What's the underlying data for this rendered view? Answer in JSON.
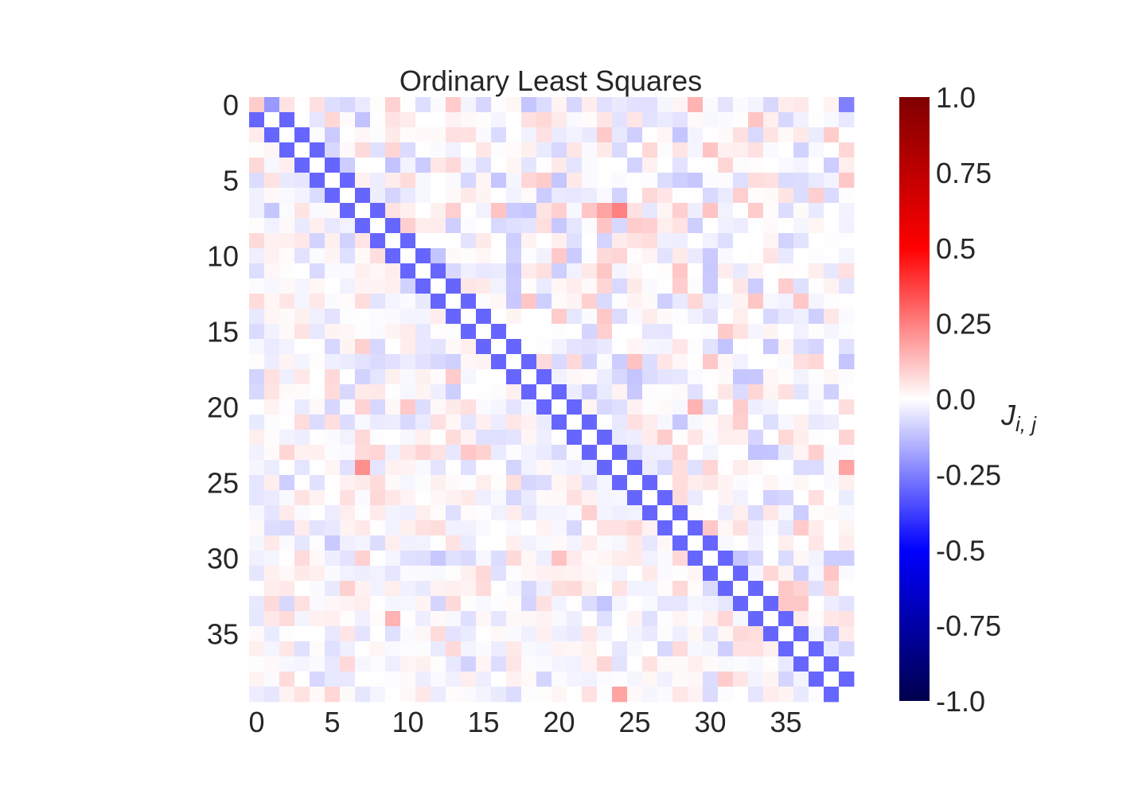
{
  "chart_data": {
    "type": "heatmap",
    "title": "Ordinary Least Squares",
    "n": 40,
    "x_ticks": [
      "0",
      "5",
      "10",
      "15",
      "20",
      "25",
      "30",
      "35"
    ],
    "y_ticks": [
      "0",
      "5",
      "10",
      "15",
      "20",
      "25",
      "30",
      "35"
    ],
    "x_tick_values": [
      0,
      5,
      10,
      15,
      20,
      25,
      30,
      35
    ],
    "y_tick_values": [
      0,
      5,
      10,
      15,
      20,
      25,
      30,
      35
    ],
    "colormap": "seismic",
    "vmin": -1.0,
    "vmax": 1.0,
    "colorbar": {
      "label": "J_{i,j}",
      "ticks": [
        "1.0",
        "0.75",
        "0.5",
        "0.25",
        "0.0",
        "-0.25",
        "-0.5",
        "-0.75",
        "-1.0"
      ],
      "tick_values": [
        1.0,
        0.75,
        0.5,
        0.25,
        0.0,
        -0.25,
        -0.5,
        -0.75,
        -1.0
      ]
    },
    "diagonal_value": 0.0,
    "nearest_neighbor_coupling": -0.3,
    "off_diagonal_noise_range": [
      -0.15,
      0.15
    ],
    "notable_entries": [
      {
        "i": 0,
        "j": 0,
        "value": 0.1
      },
      {
        "i": 0,
        "j": 1,
        "value": -0.2
      },
      {
        "i": 0,
        "j": 29,
        "value": 0.15
      },
      {
        "i": 0,
        "j": 39,
        "value": -0.25
      },
      {
        "i": 7,
        "j": 23,
        "value": 0.18
      },
      {
        "i": 7,
        "j": 24,
        "value": 0.25
      },
      {
        "i": 24,
        "j": 7,
        "value": 0.22
      },
      {
        "i": 20,
        "j": 29,
        "value": 0.15
      },
      {
        "i": 24,
        "j": 39,
        "value": 0.18
      },
      {
        "i": 39,
        "j": 24,
        "value": 0.18
      },
      {
        "i": 34,
        "j": 9,
        "value": 0.15
      },
      {
        "i": 30,
        "j": 20,
        "value": 0.12
      }
    ]
  }
}
